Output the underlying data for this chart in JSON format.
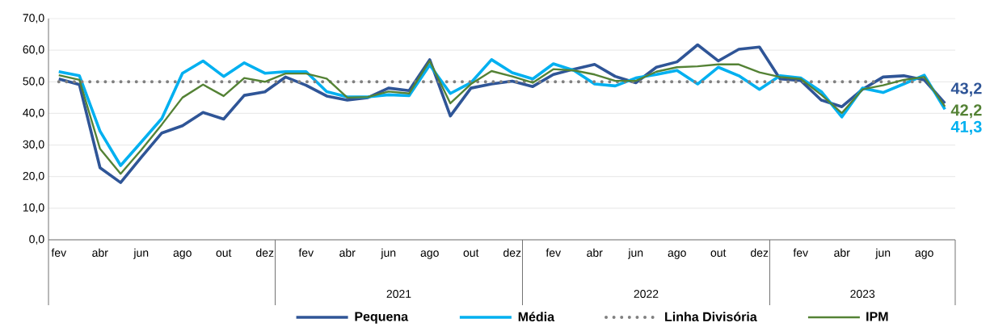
{
  "chart_data": {
    "type": "line",
    "categories": [
      "fev",
      null,
      "abr",
      null,
      "jun",
      null,
      "ago",
      null,
      "out",
      null,
      "dez",
      null,
      "fev",
      null,
      "abr",
      null,
      "jun",
      null,
      "ago",
      null,
      "out",
      null,
      "dez",
      null,
      "fev",
      null,
      "abr",
      null,
      "jun",
      null,
      "ago",
      null,
      "out",
      null,
      "dez",
      null,
      "fev",
      null,
      "abr",
      null,
      "jun",
      null,
      "ago",
      null
    ],
    "ylim": [
      0,
      70
    ],
    "yticks": [
      {
        "value": 0,
        "label": "0,0"
      },
      {
        "value": 10,
        "label": "10,0"
      },
      {
        "value": 20,
        "label": "20,0"
      },
      {
        "value": 30,
        "label": "30,0"
      },
      {
        "value": 40,
        "label": "40,0"
      },
      {
        "value": 50,
        "label": "50,0"
      },
      {
        "value": 60,
        "label": "60,0"
      },
      {
        "value": 70,
        "label": "70,0"
      }
    ],
    "grid": "y",
    "legend": "bottom",
    "line_style": "solid",
    "annotations": [
      "2021",
      "2022",
      "2023"
    ],
    "series": [
      {
        "name": "Pequena",
        "color": "#2f5597",
        "values": [
          50.9,
          49.1,
          22.8,
          18.1,
          26.1,
          33.8,
          36.1,
          40.3,
          38.2,
          45.7,
          46.8,
          51.5,
          48.9,
          45.5,
          44.2,
          45.0,
          48.0,
          47.2,
          57.0,
          39.2,
          48.0,
          49.3,
          50.2,
          48.5,
          52.3,
          54.0,
          55.5,
          51.7,
          49.7,
          54.6,
          56.3,
          61.7,
          56.6,
          60.3,
          61.0,
          50.9,
          50.4,
          44.2,
          42.1,
          47.6,
          51.5,
          51.9,
          50.6,
          43.2
        ],
        "value_labels": [
          null,
          null,
          null,
          null,
          null,
          null,
          null,
          null,
          null,
          null,
          null,
          null,
          null,
          null,
          null,
          null,
          null,
          null,
          null,
          null,
          null,
          null,
          null,
          null,
          null,
          null,
          null,
          null,
          null,
          null,
          null,
          null,
          null,
          null,
          null,
          null,
          null,
          null,
          null,
          null,
          null,
          null,
          null,
          "43,2"
        ]
      },
      {
        "name": "Média",
        "color": "#00b0f0",
        "values": [
          53.2,
          51.9,
          34.4,
          23.5,
          30.9,
          38.4,
          52.7,
          56.6,
          51.7,
          56.0,
          52.7,
          53.2,
          53.2,
          46.9,
          45.2,
          45.2,
          45.9,
          45.6,
          55.3,
          46.3,
          49.7,
          57.0,
          52.9,
          50.9,
          55.7,
          53.6,
          49.3,
          48.7,
          51.2,
          52.3,
          53.6,
          49.3,
          54.6,
          51.9,
          47.6,
          51.9,
          51.2,
          46.9,
          38.9,
          48.0,
          46.6,
          49.3,
          52.1,
          41.3
        ],
        "value_labels": [
          null,
          null,
          null,
          null,
          null,
          null,
          null,
          null,
          null,
          null,
          null,
          null,
          null,
          null,
          null,
          null,
          null,
          null,
          null,
          null,
          null,
          null,
          null,
          null,
          null,
          null,
          null,
          null,
          null,
          null,
          null,
          null,
          null,
          null,
          null,
          null,
          null,
          null,
          null,
          null,
          null,
          null,
          null,
          "41,3"
        ]
      },
      {
        "name": "Linha Divisória",
        "color": "#808080",
        "line_style": "dotted",
        "values": [
          50,
          50,
          50,
          50,
          50,
          50,
          50,
          50,
          50,
          50,
          50,
          50,
          50,
          50,
          50,
          50,
          50,
          50,
          50,
          50,
          50,
          50,
          50,
          50,
          50,
          50,
          50,
          50,
          50,
          50,
          50,
          50,
          50,
          50,
          50,
          50,
          50,
          50,
          50,
          50,
          50,
          50,
          50,
          null
        ]
      },
      {
        "name": "IPM",
        "color": "#548235",
        "values": [
          52.1,
          50.6,
          28.8,
          20.9,
          28.4,
          36.5,
          45.0,
          49.1,
          45.5,
          51.2,
          50.0,
          52.6,
          52.6,
          51.0,
          45.0,
          45.2,
          46.9,
          46.3,
          56.6,
          43.2,
          49.3,
          53.4,
          51.7,
          49.7,
          54.0,
          53.6,
          52.3,
          50.3,
          50.3,
          53.2,
          54.6,
          54.9,
          55.5,
          55.5,
          53.0,
          51.5,
          50.9,
          45.9,
          40.1,
          47.6,
          48.9,
          50.6,
          51.5,
          42.2
        ],
        "value_labels": [
          null,
          null,
          null,
          null,
          null,
          null,
          null,
          null,
          null,
          null,
          null,
          null,
          null,
          null,
          null,
          null,
          null,
          null,
          null,
          null,
          null,
          null,
          null,
          null,
          null,
          null,
          null,
          null,
          null,
          null,
          null,
          null,
          null,
          null,
          null,
          null,
          null,
          null,
          null,
          null,
          null,
          null,
          null,
          "42,2"
        ]
      }
    ]
  }
}
